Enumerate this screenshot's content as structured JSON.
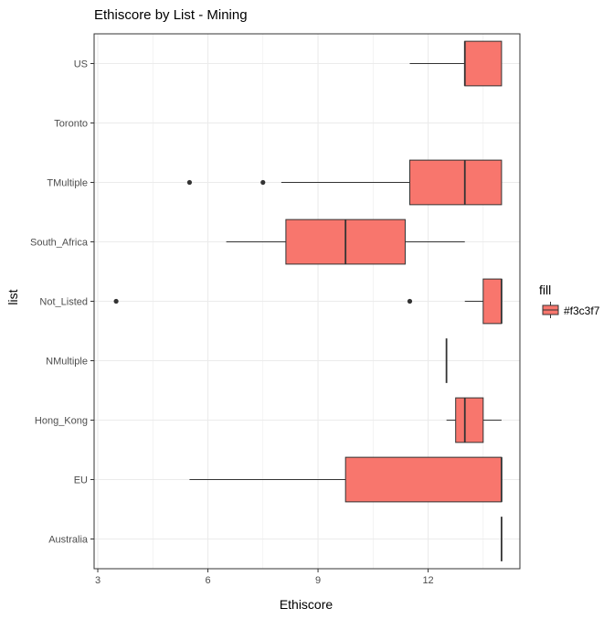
{
  "chart_data": {
    "type": "box",
    "title": "Ethiscore by List - Mining",
    "xlabel": "Ethiscore",
    "ylabel": "list",
    "xlim": [
      2.9,
      14.5
    ],
    "xticks": [
      3,
      6,
      9,
      12
    ],
    "grid": true,
    "categories": [
      "US",
      "Toronto",
      "TMultiple",
      "South_Africa",
      "Not_Listed",
      "NMultiple",
      "Hong_Kong",
      "EU",
      "Australia"
    ],
    "boxes": [
      {
        "category": "US",
        "min": 11.5,
        "q1": 13.0,
        "median": 13.0,
        "q3": 14.0,
        "max": 14.0,
        "outliers": []
      },
      {
        "category": "Toronto",
        "min": null,
        "q1": null,
        "median": null,
        "q3": null,
        "max": null,
        "outliers": []
      },
      {
        "category": "TMultiple",
        "min": 8.0,
        "q1": 11.5,
        "median": 13.0,
        "q3": 14.0,
        "max": 14.0,
        "outliers": [
          5.5,
          7.5
        ]
      },
      {
        "category": "South_Africa",
        "min": 6.5,
        "q1": 8.125,
        "median": 9.75,
        "q3": 11.375,
        "max": 13.0,
        "outliers": []
      },
      {
        "category": "Not_Listed",
        "min": 13.0,
        "q1": 13.5,
        "median": 14.0,
        "q3": 14.0,
        "max": 14.0,
        "outliers": [
          3.5,
          11.5
        ]
      },
      {
        "category": "NMultiple",
        "min": 12.5,
        "q1": 12.5,
        "median": 12.5,
        "q3": 12.5,
        "max": 12.5,
        "outliers": []
      },
      {
        "category": "Hong_Kong",
        "min": 12.5,
        "q1": 12.75,
        "median": 13.0,
        "q3": 13.5,
        "max": 14.0,
        "outliers": []
      },
      {
        "category": "EU",
        "min": 5.5,
        "q1": 9.75,
        "median": 14.0,
        "q3": 14.0,
        "max": 14.0,
        "outliers": []
      },
      {
        "category": "Australia",
        "min": 14.0,
        "q1": 14.0,
        "median": 14.0,
        "q3": 14.0,
        "max": 14.0,
        "outliers": []
      }
    ],
    "legend": {
      "title": "fill",
      "entries": [
        "#f3c3f7"
      ],
      "placement": "right"
    },
    "colors": {
      "box_fill": "#f8766d",
      "box_stroke": "#333333",
      "grid": "#ebebeb",
      "panel_border": "#333333"
    }
  }
}
